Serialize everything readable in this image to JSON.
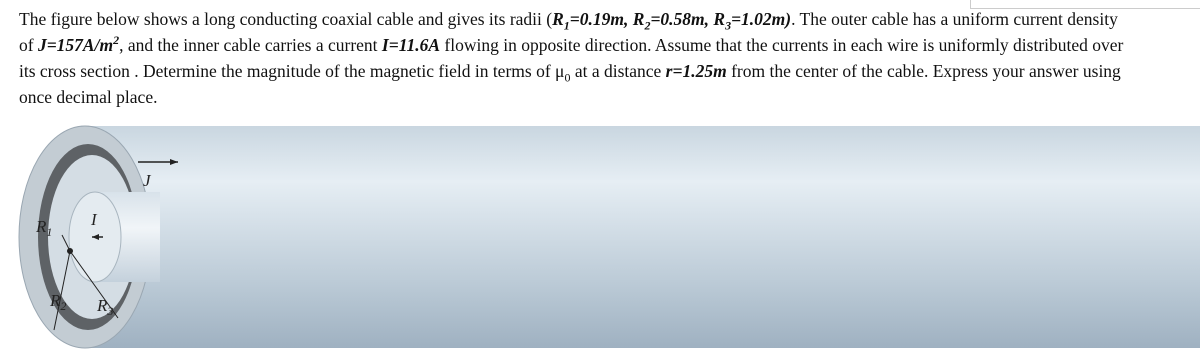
{
  "question": {
    "runs": [
      {
        "text": "The figure below shows a long conducting coaxial cable and gives its radii ("
      },
      {
        "text": "R",
        "style": "bold-italic"
      },
      {
        "text": "1",
        "style": "bold-italic-sub"
      },
      {
        "text": "=0.19m, R",
        "style": "bold-italic"
      },
      {
        "text": "2",
        "style": "bold-italic-sub"
      },
      {
        "text": "=0.58m, R",
        "style": "bold-italic"
      },
      {
        "text": "3",
        "style": "bold-italic-sub"
      },
      {
        "text": "=1.02m)",
        "style": "bold-italic"
      },
      {
        "text": ". The outer cable has a uniform current density of "
      },
      {
        "text": "J=157A/m",
        "style": "bold-italic"
      },
      {
        "text": "2",
        "style": "bold-italic-sup"
      },
      {
        "text": ", and the inner cable carries a current "
      },
      {
        "text": "I=11.6A",
        "style": "bold-italic"
      },
      {
        "text": " flowing in opposite direction.  Assume that the currents in each wire is uniformly distributed  over its cross section . Determine the magnitude of the magnetic field in terms of "
      },
      {
        "text": "μ"
      },
      {
        "text": "0",
        "style": "sub"
      },
      {
        "text": " at a distance "
      },
      {
        "text": "r=1.25m",
        "style": "bold-italic"
      },
      {
        "text": " from the center of the cable. Express your answer using once decimal place."
      }
    ]
  },
  "figure": {
    "labels": {
      "J": "J",
      "I": "I",
      "R1": {
        "main": "R",
        "sub": "1"
      },
      "R2": {
        "main": "R",
        "sub": "2"
      },
      "R3": {
        "main": "R",
        "sub": "3"
      }
    }
  }
}
